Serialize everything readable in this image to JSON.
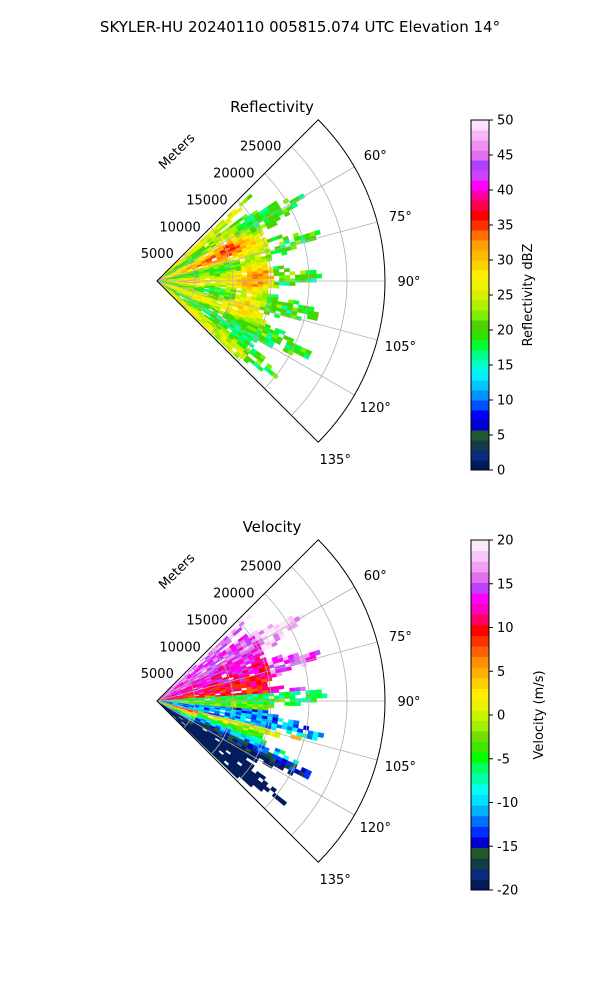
{
  "figure": {
    "suptitle": "SKYLER-HU  20240110  005815.074 UTC Elevation 14°"
  },
  "colors": {
    "reflectivity_levels": [
      "#001a5a",
      "#0a2a7a",
      "#153a4a",
      "#1e5a2e",
      "#0000cc",
      "#0000ff",
      "#0050ff",
      "#0090ff",
      "#00c8ff",
      "#00eeff",
      "#00ffcc",
      "#00ff88",
      "#00ff30",
      "#30e000",
      "#50d000",
      "#80ee00",
      "#b0f000",
      "#d8f000",
      "#f0f000",
      "#ffee00",
      "#ffd000",
      "#ffb800",
      "#ffa000",
      "#ff7000",
      "#ff3000",
      "#ff0000",
      "#ff0050",
      "#ff00a0",
      "#ff00ff",
      "#d040ff",
      "#b040ff",
      "#e070f0",
      "#f090f0",
      "#f8b8f8",
      "#fde0fd"
    ],
    "velocity_levels": [
      "#001a5a",
      "#0a2a7a",
      "#153a4a",
      "#1e5a2e",
      "#0000cc",
      "#0030ff",
      "#0070ff",
      "#00b0ff",
      "#00e0ff",
      "#00ffee",
      "#00ffaa",
      "#00ff60",
      "#00ff00",
      "#40e800",
      "#70e000",
      "#a0f000",
      "#c8f400",
      "#eef000",
      "#ffee00",
      "#ffd000",
      "#ffb000",
      "#ff9000",
      "#ff6000",
      "#ff3000",
      "#ff0000",
      "#ff0060",
      "#ff00c0",
      "#ff00ff",
      "#c040ff",
      "#e070f0",
      "#f0a0f0",
      "#f8c8f8",
      "#fde8fd"
    ],
    "grid": "#b0b0b0"
  },
  "chart_data": [
    {
      "type": "polar-sector",
      "title": "Reflectivity",
      "field": "reflectivity",
      "radial_label": "Meters",
      "radial_ticks": [
        5000,
        10000,
        15000,
        20000,
        25000
      ],
      "rmax": 30000,
      "theta_ticks": [
        "60°",
        "75°",
        "90°",
        "105°",
        "120°",
        "135°"
      ],
      "theta_range_deg": [
        45,
        135
      ],
      "data_extent_m": 22000,
      "colorbar": {
        "label": "Reflectivity dBZ",
        "ticks": [
          0,
          5,
          10,
          15,
          20,
          25,
          30,
          35,
          40,
          45,
          50
        ],
        "range": [
          0,
          50
        ]
      }
    },
    {
      "type": "polar-sector",
      "title": "Velocity",
      "field": "velocity",
      "radial_label": "Meters",
      "radial_ticks": [
        5000,
        10000,
        15000,
        20000,
        25000
      ],
      "rmax": 30000,
      "theta_ticks": [
        "60°",
        "75°",
        "90°",
        "105°",
        "120°",
        "135°"
      ],
      "theta_range_deg": [
        45,
        135
      ],
      "data_extent_m": 22000,
      "colorbar": {
        "label": "Velocity (m/s)",
        "ticks": [
          20,
          15,
          10,
          5,
          0,
          -5,
          -10,
          -15,
          -20
        ],
        "range": [
          -20,
          20
        ]
      }
    }
  ]
}
